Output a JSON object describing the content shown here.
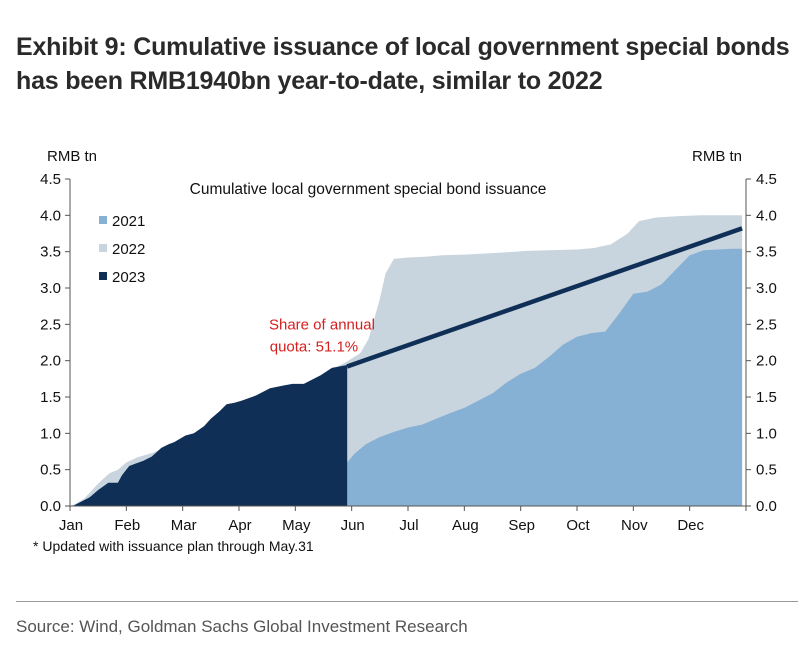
{
  "header": {
    "title_line1": "Exhibit 9: Cumulative issuance of local government special bonds",
    "title_line2": "has been RMB1940bn year-to-date, similar to 2022"
  },
  "footnote": "* Updated with issuance plan through May.31",
  "source": "Source: Wind, Goldman Sachs Global Investment Research",
  "colors": {
    "s2021": "#86b1d5",
    "s2022": "#c9d5de",
    "s2023": "#0f2f57",
    "annotation": "#d62020"
  },
  "chart_data": {
    "type": "area",
    "title": "Cumulative local government special bond issuance",
    "ylabel_left": "RMB tn",
    "ylabel_right": "RMB tn",
    "ylim": [
      0,
      4.5
    ],
    "yticks": [
      "0.0",
      "0.5",
      "1.0",
      "1.5",
      "2.0",
      "2.5",
      "3.0",
      "3.5",
      "4.0",
      "4.5"
    ],
    "xlim": [
      0,
      12
    ],
    "month_labels": [
      "Jan",
      "Feb",
      "Mar",
      "Apr",
      "May",
      "Jun",
      "Jul",
      "Aug",
      "Sep",
      "Oct",
      "Nov",
      "Dec"
    ],
    "legend": [
      "2021",
      "2022",
      "2023"
    ],
    "legend_position": "top-left",
    "grid": false,
    "annotation": {
      "line1": "Share of annual",
      "line2": "quota: 51.1%",
      "x": 4.65,
      "y": 2.1
    },
    "quota_line": {
      "x": [
        4.92,
        11.93
      ],
      "y": [
        1.92,
        3.82
      ]
    },
    "series": [
      {
        "name": "2022",
        "x": [
          0,
          0.1,
          0.25,
          0.5,
          0.7,
          0.85,
          1.0,
          1.2,
          1.5,
          1.8,
          2.1,
          2.4,
          2.7,
          3.0,
          3.3,
          3.6,
          3.9,
          4.1,
          4.35,
          4.6,
          4.9,
          5.15,
          5.3,
          5.5,
          5.6,
          5.75,
          6.0,
          6.3,
          6.6,
          7.0,
          7.5,
          7.9,
          8.1,
          8.5,
          9.0,
          9.3,
          9.6,
          9.9,
          10.1,
          10.4,
          10.8,
          11.2,
          11.6,
          11.93
        ],
        "y": [
          0,
          0.03,
          0.1,
          0.31,
          0.45,
          0.5,
          0.6,
          0.67,
          0.74,
          0.85,
          0.93,
          1.05,
          1.12,
          1.3,
          1.42,
          1.5,
          1.56,
          1.65,
          1.75,
          1.86,
          1.98,
          2.1,
          2.3,
          2.85,
          3.2,
          3.4,
          3.42,
          3.43,
          3.45,
          3.46,
          3.48,
          3.5,
          3.51,
          3.52,
          3.53,
          3.55,
          3.6,
          3.75,
          3.92,
          3.97,
          3.99,
          4.0,
          4.0,
          4.0
        ]
      },
      {
        "name": "2021",
        "x": [
          4.92,
          5.05,
          5.25,
          5.5,
          5.75,
          6.0,
          6.25,
          6.5,
          6.75,
          7.0,
          7.25,
          7.5,
          7.75,
          8.0,
          8.25,
          8.5,
          8.75,
          9.0,
          9.25,
          9.5,
          9.75,
          10.0,
          10.25,
          10.5,
          10.75,
          11.0,
          11.25,
          11.5,
          11.75,
          11.93
        ],
        "y": [
          0.6,
          0.72,
          0.85,
          0.95,
          1.02,
          1.08,
          1.12,
          1.2,
          1.28,
          1.35,
          1.45,
          1.55,
          1.7,
          1.82,
          1.9,
          2.05,
          2.22,
          2.33,
          2.38,
          2.4,
          2.65,
          2.92,
          2.95,
          3.05,
          3.25,
          3.45,
          3.52,
          3.53,
          3.54,
          3.54
        ]
      },
      {
        "name": "2023",
        "x": [
          0,
          0.05,
          0.35,
          0.5,
          0.68,
          0.85,
          0.92,
          1.05,
          1.15,
          1.3,
          1.45,
          1.62,
          1.75,
          1.85,
          2.05,
          2.2,
          2.38,
          2.5,
          2.65,
          2.78,
          2.92,
          3.05,
          3.3,
          3.55,
          3.8,
          3.95,
          4.15,
          4.25,
          4.45,
          4.65,
          4.92
        ],
        "y": [
          0,
          0,
          0.12,
          0.22,
          0.32,
          0.32,
          0.42,
          0.55,
          0.58,
          0.62,
          0.68,
          0.8,
          0.85,
          0.88,
          0.97,
          1.0,
          1.1,
          1.2,
          1.3,
          1.4,
          1.42,
          1.45,
          1.52,
          1.62,
          1.66,
          1.68,
          1.68,
          1.72,
          1.8,
          1.9,
          1.94
        ]
      }
    ]
  }
}
